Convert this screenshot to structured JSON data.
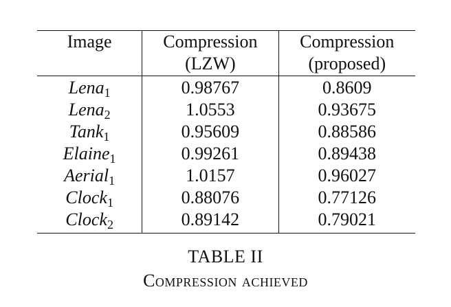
{
  "table": {
    "headers": [
      {
        "line1": "Image",
        "line2": ""
      },
      {
        "line1": "Compression",
        "line2": "(LZW)"
      },
      {
        "line1": "Compression",
        "line2": "(proposed)"
      }
    ],
    "rows": [
      {
        "name": "Lena",
        "sub": "1",
        "lzw": "0.98767",
        "proposed": "0.8609"
      },
      {
        "name": "Lena",
        "sub": "2",
        "lzw": "1.0553",
        "proposed": "0.93675"
      },
      {
        "name": "Tank",
        "sub": "1",
        "lzw": "0.95609",
        "proposed": "0.88586"
      },
      {
        "name": "Elaine",
        "sub": "1",
        "lzw": "0.99261",
        "proposed": "0.89438"
      },
      {
        "name": "Aerial",
        "sub": "1",
        "lzw": "1.0157",
        "proposed": "0.96027"
      },
      {
        "name": "Clock",
        "sub": "1",
        "lzw": "0.88076",
        "proposed": "0.77126"
      },
      {
        "name": "Clock",
        "sub": "2",
        "lzw": "0.89142",
        "proposed": "0.79021"
      }
    ]
  },
  "caption": {
    "number": "TABLE II",
    "text": "Compression achieved"
  }
}
